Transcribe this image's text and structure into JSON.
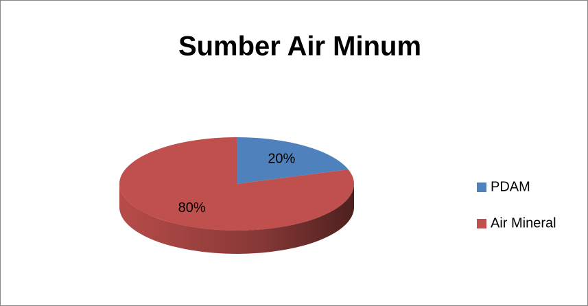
{
  "chart_data": {
    "type": "pie",
    "title": "Sumber Air Minum",
    "categories": [
      "PDAM",
      "Air Mineral"
    ],
    "values": [
      20,
      80
    ],
    "value_labels": [
      "20%",
      "80%"
    ],
    "colors": [
      "#4f81bd",
      "#c0504d"
    ],
    "legend": "right"
  }
}
